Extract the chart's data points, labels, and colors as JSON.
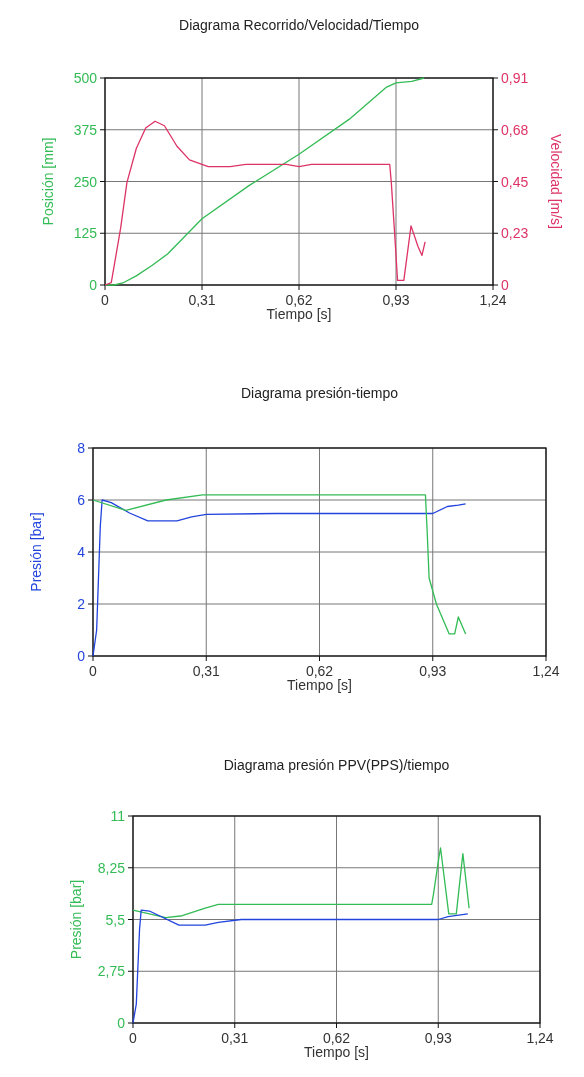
{
  "chart_data": [
    {
      "type": "line",
      "title": "Diagrama Recorrido/Velocidad/Tiempo",
      "xlabel": "Tiempo [s]",
      "ylabel": "Posición [mm]",
      "y2label": "Velocidad [m/s]",
      "xlim": [
        0,
        1.24
      ],
      "xticks": [
        {
          "value": 0,
          "label": "0"
        },
        {
          "value": 0.31,
          "label": "0,31"
        },
        {
          "value": 0.62,
          "label": "0,62"
        },
        {
          "value": 0.93,
          "label": "0,93"
        },
        {
          "value": 1.24,
          "label": "1,24"
        }
      ],
      "ylim": [
        0,
        500
      ],
      "yticks": [
        0,
        125,
        250,
        375,
        500
      ],
      "y2lim": [
        0,
        0.91
      ],
      "y2ticks": [
        0,
        {
          "value": 0.2275,
          "label": "0,23"
        },
        {
          "value": 0.455,
          "label": "0,45"
        },
        {
          "value": 0.6825,
          "label": "0,68"
        },
        {
          "value": 0.91,
          "label": "0,91"
        }
      ],
      "grid": true,
      "series": [
        {
          "color": "#33bb55",
          "x": [
            0,
            0.03,
            0.06,
            0.1,
            0.15,
            0.2,
            0.31,
            0.46,
            0.62,
            0.78,
            0.9,
            0.93,
            0.98,
            1.02
          ],
          "values": [
            0,
            0,
            6,
            22,
            47,
            75,
            160,
            240,
            316,
            400,
            478,
            488,
            492,
            500
          ]
        },
        {
          "color": "#dd3366",
          "axis": "y2",
          "x": [
            0,
            0.02,
            0.05,
            0.07,
            0.1,
            0.13,
            0.16,
            0.19,
            0.23,
            0.27,
            0.33,
            0.4,
            0.45,
            0.58,
            0.62,
            0.66,
            0.91,
            0.915,
            0.925,
            0.935,
            0.955,
            0.978,
            1.0,
            1.013,
            1.023
          ],
          "values": [
            0,
            0.01,
            0.25,
            0.45,
            0.6,
            0.69,
            0.72,
            0.7,
            0.61,
            0.55,
            0.52,
            0.52,
            0.53,
            0.53,
            0.52,
            0.53,
            0.53,
            0.45,
            0.24,
            0.02,
            0.02,
            0.26,
            0.17,
            0.13,
            0.19
          ]
        }
      ]
    },
    {
      "type": "line",
      "title": "Diagrama presión-tiempo",
      "xlabel": "Tiempo [s]",
      "ylabel": "Presión [bar]",
      "xlim": [
        0,
        1.24
      ],
      "xticks": [
        {
          "value": 0,
          "label": "0"
        },
        {
          "value": 0.31,
          "label": "0,31"
        },
        {
          "value": 0.62,
          "label": "0,62"
        },
        {
          "value": 0.93,
          "label": "0,93"
        },
        {
          "value": 1.24,
          "label": "1,24"
        }
      ],
      "ylim": [
        0,
        8
      ],
      "yticks": [
        0,
        2,
        4,
        6,
        8
      ],
      "grid": true,
      "series": [
        {
          "color": "#2244dd",
          "x": [
            0,
            0.01,
            0.015,
            0.02,
            0.025,
            0.05,
            0.1,
            0.15,
            0.23,
            0.27,
            0.31,
            0.5,
            0.93,
            0.97,
            1.0,
            1.02
          ],
          "values": [
            0,
            1,
            3,
            5,
            6,
            5.9,
            5.5,
            5.2,
            5.2,
            5.35,
            5.45,
            5.48,
            5.48,
            5.75,
            5.8,
            5.85
          ]
        },
        {
          "color": "#33bb55",
          "x": [
            0,
            0.09,
            0.2,
            0.3,
            0.91,
            0.915,
            0.92,
            0.94,
            0.975,
            0.99,
            1.0,
            1.02
          ],
          "values": [
            6,
            5.6,
            6,
            6.2,
            6.2,
            4.7,
            3,
            2,
            0.85,
            0.85,
            1.5,
            0.85
          ]
        }
      ]
    },
    {
      "type": "line",
      "title": "Diagrama presión PPV(PPS)/tiempo",
      "xlabel": "Tiempo [s]",
      "ylabel": "Presión [bar]",
      "xlim": [
        0,
        1.24
      ],
      "xticks": [
        {
          "value": 0,
          "label": "0"
        },
        {
          "value": 0.31,
          "label": "0,31"
        },
        {
          "value": 0.62,
          "label": "0,62"
        },
        {
          "value": 0.93,
          "label": "0,93"
        },
        {
          "value": 1.24,
          "label": "1,24"
        }
      ],
      "ylim": [
        0,
        11
      ],
      "yticks": [
        0,
        {
          "value": 2.75,
          "label": "2,75"
        },
        {
          "value": 5.5,
          "label": "5,5"
        },
        {
          "value": 8.25,
          "label": "8,25"
        },
        11
      ],
      "grid": true,
      "series": [
        {
          "color": "#33bb55",
          "x": [
            0,
            0.1,
            0.15,
            0.22,
            0.26,
            0.91,
            0.915,
            0.932,
            0.937,
            0.962,
            0.985,
            1.005,
            1.024
          ],
          "values": [
            6,
            5.6,
            5.7,
            6.1,
            6.3,
            6.3,
            6.8,
            8.8,
            9.3,
            5.8,
            5.8,
            9,
            6.1
          ]
        },
        {
          "color": "#2244dd",
          "x": [
            0,
            0.01,
            0.015,
            0.02,
            0.025,
            0.05,
            0.14,
            0.22,
            0.26,
            0.33,
            0.93,
            0.96,
            1.02
          ],
          "values": [
            0,
            1,
            3,
            5,
            6,
            5.95,
            5.2,
            5.2,
            5.35,
            5.5,
            5.5,
            5.65,
            5.8
          ]
        }
      ]
    }
  ]
}
